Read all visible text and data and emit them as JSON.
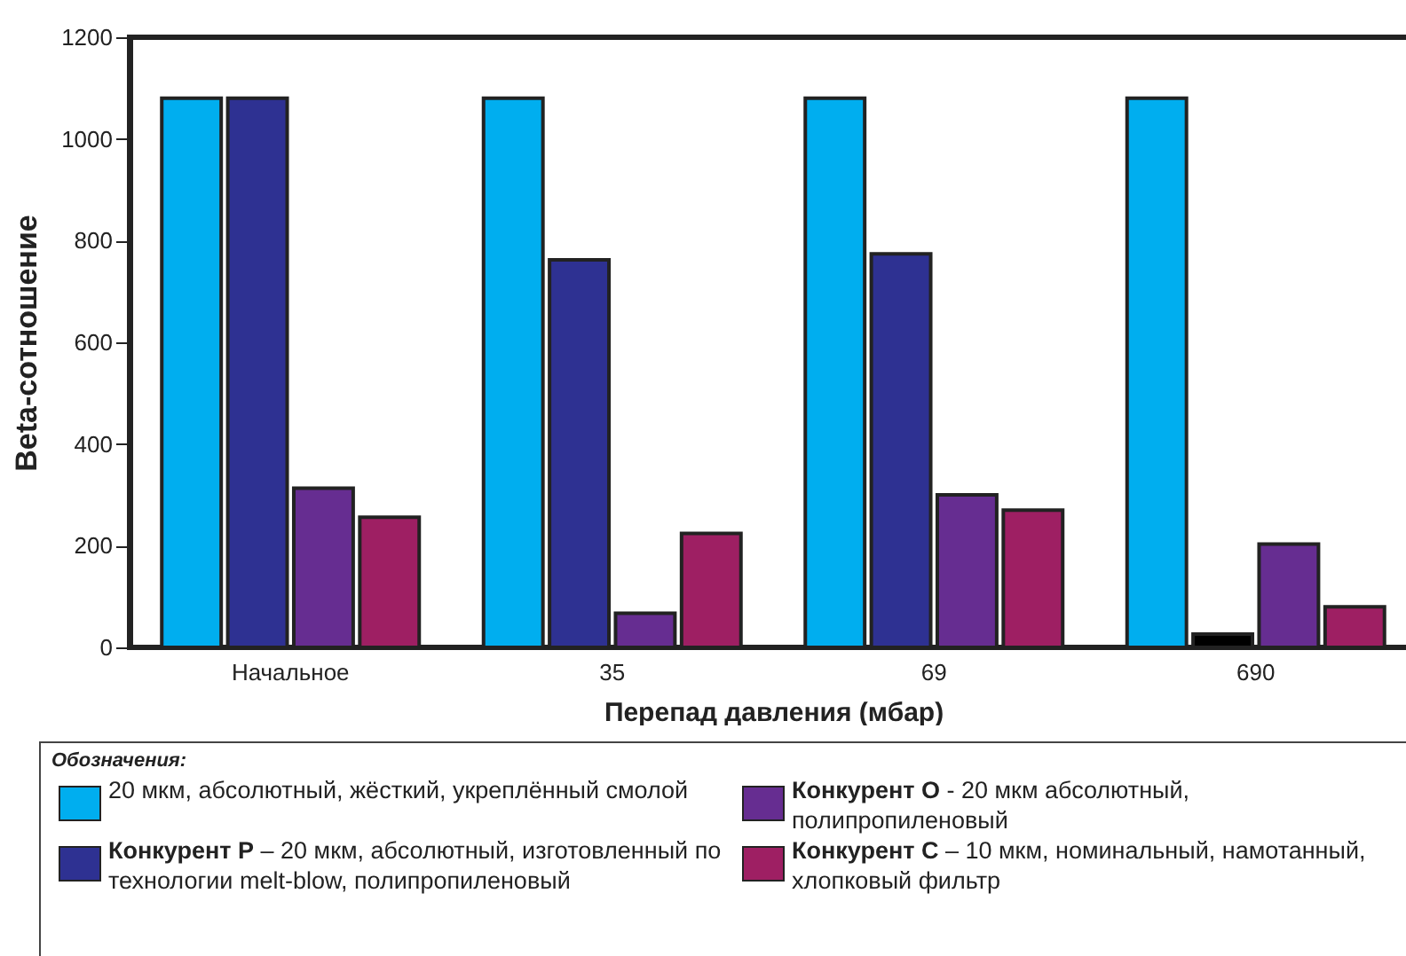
{
  "chart_data": {
    "type": "bar",
    "xlabel": "Перепад давления  (мбар)",
    "ylabel": "Beta-сотношение",
    "legend_title": "Обозначения:",
    "legend": "bottom",
    "categories": [
      "Начальное",
      "35",
      "69",
      "690"
    ],
    "ylim": [
      0,
      1200
    ],
    "yticks": [
      0,
      200,
      400,
      600,
      800,
      1000,
      1200
    ],
    "series": [
      {
        "name": "20 мкм, абсолютный, жёсткий, укреплённый смолой",
        "color": "#00aeef",
        "values": [
          1080,
          1080,
          1080,
          1080
        ]
      },
      {
        "name": "Конкурент P – 20 мкм, абсолютный, изготовленный по технологии melt-blow, полипропиленовый",
        "color": "#2e3192",
        "colors": [
          "#2e3192",
          "#2e3192",
          "#2e3192",
          "#000000"
        ],
        "values": [
          1080,
          762,
          774,
          26
        ]
      },
      {
        "name": "Конкурент  O - 20 мкм абсолютный, полипропиленовый",
        "color": "#662d91",
        "values": [
          313,
          67,
          300,
          203
        ]
      },
      {
        "name": "Конкурент  C – 10 мкм, номинальный, намотанный, хлопковый фильтр",
        "color": "#9e1f63",
        "values": [
          256,
          224,
          270,
          80
        ]
      }
    ]
  }
}
